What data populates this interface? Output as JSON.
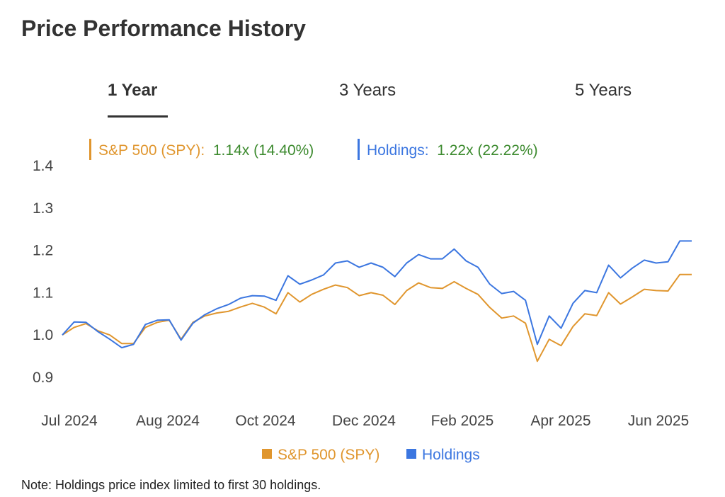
{
  "header": {
    "title": "Price Performance History"
  },
  "tabs": [
    {
      "label": "1 Year",
      "active": true
    },
    {
      "label": "3 Years",
      "active": false
    },
    {
      "label": "5 Years",
      "active": false
    }
  ],
  "summary": {
    "spy": {
      "label": "S&P 500 (SPY):",
      "value": "1.14x (14.40%)"
    },
    "holdings": {
      "label": "Holdings:",
      "value": "1.22x (22.22%)"
    }
  },
  "colors": {
    "spy": "#E0962E",
    "holdings": "#3B76E0",
    "positive": "#3C8A2E"
  },
  "note": "Note: Holdings price index limited to first 30 holdings.",
  "chart_data": {
    "type": "line",
    "title": "",
    "xlabel": "",
    "ylabel": "",
    "ylim": [
      0.9,
      1.4
    ],
    "yticks": [
      "1.4",
      "1.3",
      "1.2",
      "1.1",
      "1.0",
      "0.9"
    ],
    "xtick_labels": [
      "Jul 2024",
      "Aug 2024",
      "Oct 2024",
      "Dec 2024",
      "Feb 2025",
      "Apr 2025",
      "Jun 2025"
    ],
    "legend_position": "bottom-center",
    "series": [
      {
        "name": "S&P 500 (SPY)",
        "values": [
          1.0,
          1.018,
          1.027,
          1.01,
          1.0,
          0.98,
          0.98,
          1.018,
          1.03,
          1.035,
          0.99,
          1.03,
          1.045,
          1.052,
          1.056,
          1.066,
          1.075,
          1.066,
          1.05,
          1.1,
          1.078,
          1.096,
          1.108,
          1.118,
          1.112,
          1.093,
          1.1,
          1.094,
          1.072,
          1.105,
          1.123,
          1.112,
          1.11,
          1.126,
          1.11,
          1.096,
          1.065,
          1.04,
          1.045,
          1.028,
          0.938,
          0.99,
          0.975,
          1.02,
          1.05,
          1.046,
          1.1,
          1.073,
          1.09,
          1.108,
          1.105,
          1.104,
          1.143,
          1.143
        ]
      },
      {
        "name": "Holdings",
        "values": [
          1.0,
          1.031,
          1.03,
          1.008,
          0.99,
          0.97,
          0.978,
          1.025,
          1.035,
          1.036,
          0.988,
          1.028,
          1.048,
          1.062,
          1.072,
          1.087,
          1.093,
          1.092,
          1.082,
          1.14,
          1.12,
          1.13,
          1.142,
          1.17,
          1.175,
          1.16,
          1.17,
          1.16,
          1.138,
          1.17,
          1.19,
          1.18,
          1.18,
          1.203,
          1.175,
          1.16,
          1.12,
          1.098,
          1.103,
          1.082,
          0.978,
          1.045,
          1.016,
          1.075,
          1.105,
          1.1,
          1.165,
          1.135,
          1.158,
          1.177,
          1.17,
          1.173,
          1.222,
          1.222
        ]
      }
    ]
  }
}
